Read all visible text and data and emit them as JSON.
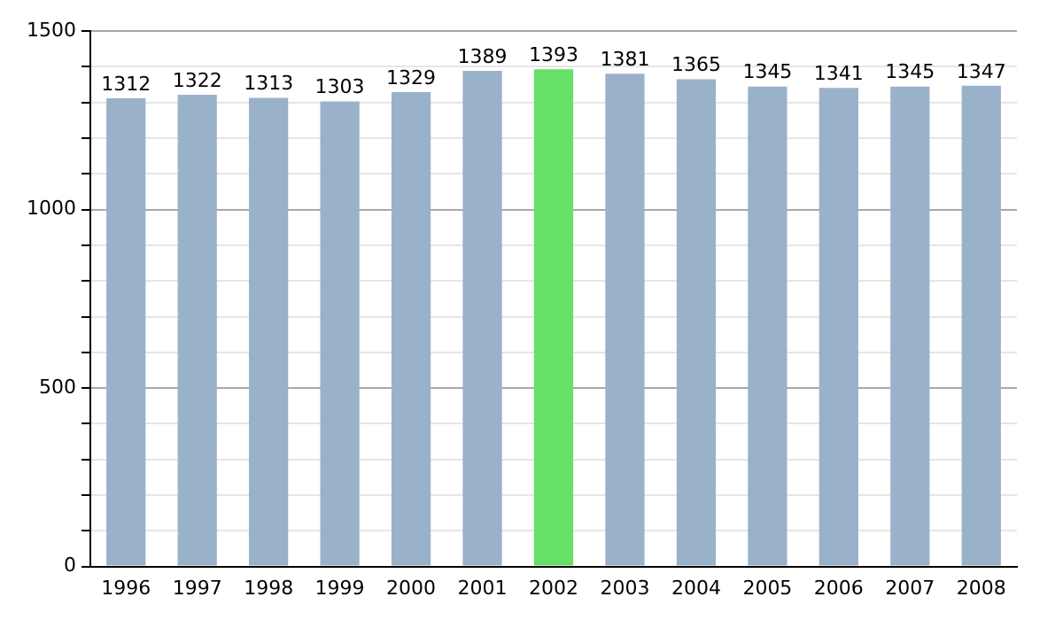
{
  "chart_data": {
    "type": "bar",
    "categories": [
      "1996",
      "1997",
      "1998",
      "1999",
      "2000",
      "2001",
      "2002",
      "2003",
      "2004",
      "2005",
      "2006",
      "2007",
      "2008"
    ],
    "values": [
      1312,
      1322,
      1313,
      1303,
      1329,
      1389,
      1393,
      1381,
      1365,
      1345,
      1341,
      1345,
      1347
    ],
    "colors": [
      "#9ab1ca",
      "#9ab1ca",
      "#9ab1ca",
      "#9ab1ca",
      "#9ab1ca",
      "#9ab1ca",
      "#66e066",
      "#9ab1ca",
      "#9ab1ca",
      "#9ab1ca",
      "#9ab1ca",
      "#9ab1ca",
      "#9ab1ca"
    ],
    "ylim": [
      0,
      1500
    ],
    "yticks": [
      0,
      {
        "value": 100,
        "label": null
      },
      {
        "value": 200,
        "label": null
      },
      {
        "value": 300,
        "label": null
      },
      {
        "value": 400,
        "label": null
      },
      500,
      {
        "value": 600,
        "label": null
      },
      {
        "value": 700,
        "label": null
      },
      {
        "value": 800,
        "label": null
      },
      {
        "value": 900,
        "label": null
      },
      1000,
      {
        "value": 1100,
        "label": null
      },
      {
        "value": 1200,
        "label": null
      },
      {
        "value": 1300,
        "label": null
      },
      {
        "value": 1400,
        "label": null
      },
      1500
    ],
    "grid": "y",
    "data_labels": true
  }
}
